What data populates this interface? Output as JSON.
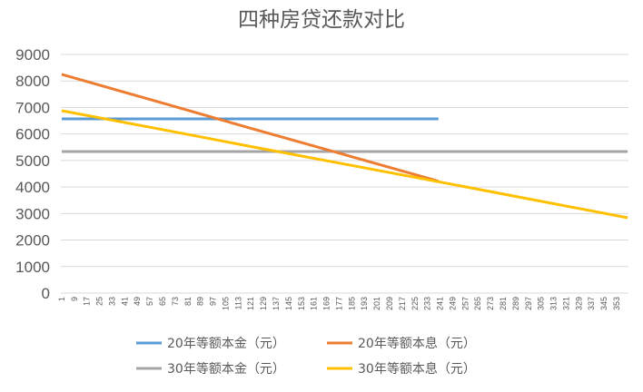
{
  "chart_data": {
    "type": "line",
    "title": "四种房贷还款对比",
    "xlabel": "",
    "ylabel": "",
    "ylim": [
      0,
      9000
    ],
    "xlim": [
      1,
      360
    ],
    "yticks": [
      "0",
      "1000",
      "2000",
      "3000",
      "4000",
      "5000",
      "6000",
      "7000",
      "8000",
      "9000"
    ],
    "xticks": [
      "1",
      "9",
      "17",
      "25",
      "33",
      "41",
      "49",
      "57",
      "65",
      "73",
      "81",
      "89",
      "97",
      "105",
      "113",
      "121",
      "129",
      "137",
      "145",
      "153",
      "161",
      "169",
      "177",
      "185",
      "193",
      "201",
      "209",
      "217",
      "225",
      "233",
      "241",
      "249",
      "257",
      "265",
      "273",
      "281",
      "289",
      "297",
      "305",
      "313",
      "321",
      "329",
      "337",
      "345",
      "353"
    ],
    "grid": true,
    "legend_position": "bottom",
    "series": [
      {
        "name": "20年等额本金（元）",
        "color": "#5B9BD5",
        "x": [
          1,
          240
        ],
        "values": [
          6570,
          6570
        ]
      },
      {
        "name": "20年等额本息（元）",
        "color": "#ED7D31",
        "x": [
          1,
          60,
          120,
          180,
          240
        ],
        "values": [
          8250,
          7250,
          6230,
          5230,
          4220
        ]
      },
      {
        "name": "30年等额本金（元）",
        "color": "#A5A5A5",
        "x": [
          1,
          360
        ],
        "values": [
          5340,
          5340
        ]
      },
      {
        "name": "30年等额本息（元）",
        "color": "#FFC000",
        "x": [
          1,
          60,
          120,
          180,
          240,
          300,
          360
        ],
        "values": [
          6880,
          6220,
          5540,
          4870,
          4200,
          3520,
          2840
        ]
      }
    ]
  }
}
